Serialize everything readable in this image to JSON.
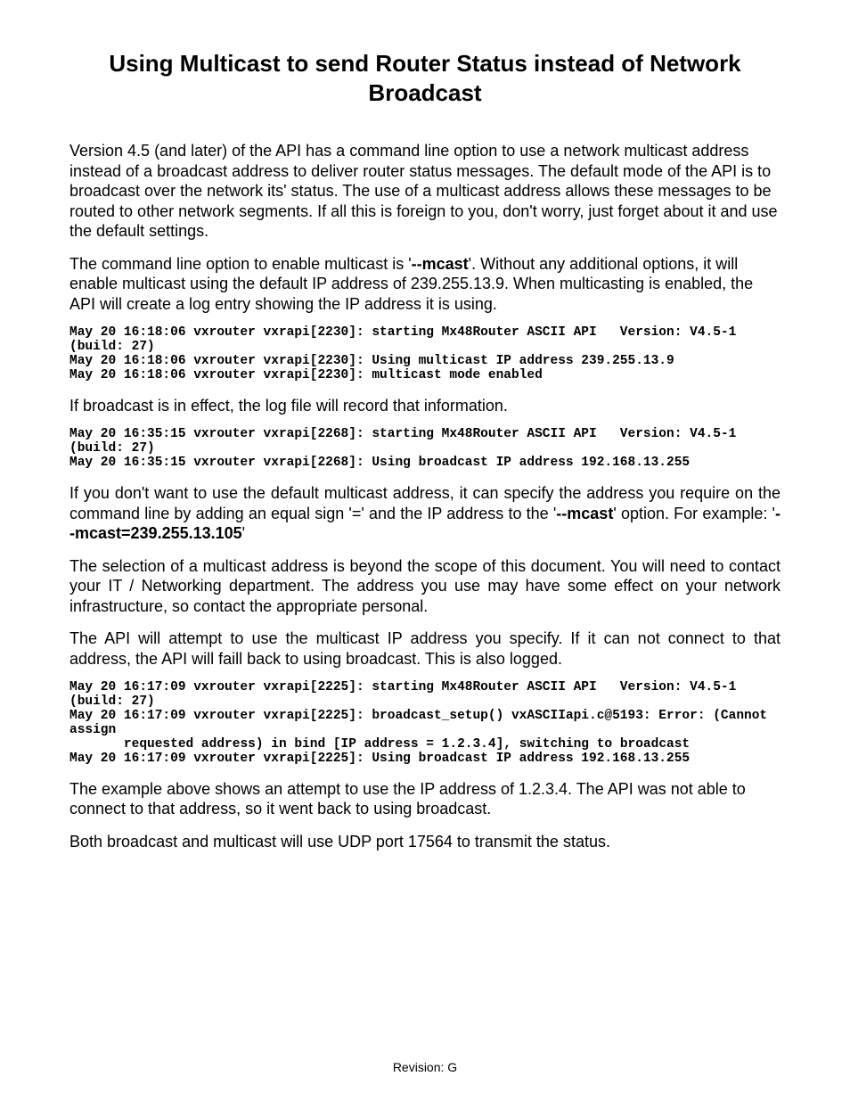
{
  "title": "Using Multicast to send Router Status instead of Network Broadcast",
  "para1_a": "Version 4.5 (and later) of the API has a command line option to use a network multicast address instead of a broadcast address to deliver router status messages. The default mode of the API is to broadcast over the network its' status. The use of a multicast address allows these messages to be routed to other network segments. If all this is foreign to you, don't worry, just forget about it and use the default settings.",
  "para2_a": "The command line option to enable multicast is '",
  "para2_b": "--mcast",
  "para2_c": "'. Without any additional options, it will enable multicast using the default IP address of 239.255.13.9. When multicasting is enabled, the API will create a log entry showing the IP address it is using.",
  "log1": "May 20 16:18:06 vxrouter vxrapi[2230]: starting Mx48Router ASCII API   Version: V4.5-1  (build: 27)\nMay 20 16:18:06 vxrouter vxrapi[2230]: Using multicast IP address 239.255.13.9\nMay 20 16:18:06 vxrouter vxrapi[2230]: multicast mode enabled",
  "para3": "If broadcast is in effect, the log file will record that information.",
  "log2": "May 20 16:35:15 vxrouter vxrapi[2268]: starting Mx48Router ASCII API   Version: V4.5-1  (build: 27)\nMay 20 16:35:15 vxrouter vxrapi[2268]: Using broadcast IP address 192.168.13.255",
  "para4_a": "If you don't want to use the default multicast address, it can specify the address you require on the command line by adding an equal sign '=' and the IP address to the '",
  "para4_b": "--mcast",
  "para4_c": "' option. For example: '",
  "para4_d": "--mcast=239.255.13.105",
  "para4_e": "'",
  "para5": "The selection of a multicast address is beyond the scope of this document. You will need to contact your IT / Networking department. The address you use may have some effect on your network infrastructure, so contact the appropriate  personal.",
  "para6": "The API will attempt to use the multicast IP address you specify. If it can not connect to that address, the API will faill back to using broadcast. This is also logged.",
  "log3": "May 20 16:17:09 vxrouter vxrapi[2225]: starting Mx48Router ASCII API   Version: V4.5-1  (build: 27)\nMay 20 16:17:09 vxrouter vxrapi[2225]: broadcast_setup() vxASCIIapi.c@5193: Error: (Cannot assign\n       requested address) in bind [IP address = 1.2.3.4], switching to broadcast\nMay 20 16:17:09 vxrouter vxrapi[2225]: Using broadcast IP address 192.168.13.255",
  "para7": "The example above shows an attempt to use the IP address of 1.2.3.4. The API was not able to connect to that address, so it went back to using broadcast.",
  "para8": "Both broadcast and multicast will use UDP port 17564 to transmit the status.",
  "footer": "Revision: G"
}
